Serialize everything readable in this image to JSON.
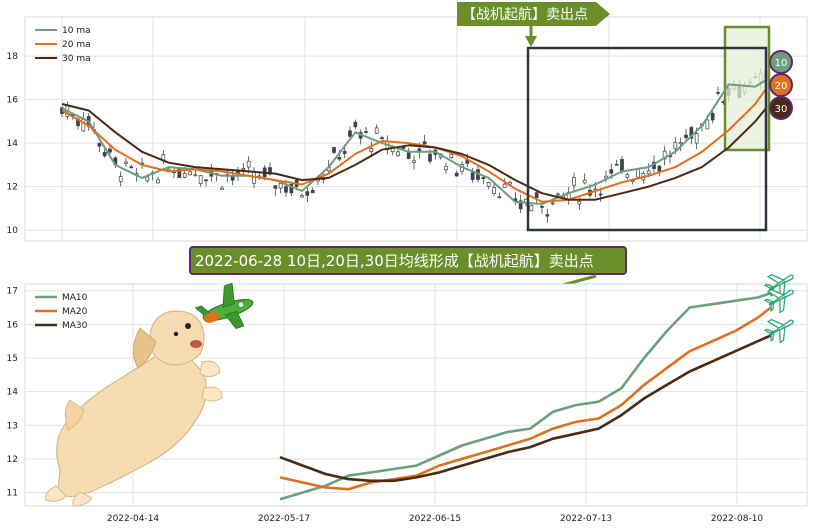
{
  "chart_data": [
    {
      "type": "line",
      "subtype": "candlestick-with-moving-averages",
      "x_tick_labels": [],
      "y_ticks": [
        10,
        12,
        14,
        16,
        18
      ],
      "ylim": [
        9.5,
        19.8
      ],
      "grid": true,
      "legend_position": "top-left",
      "series": [
        {
          "name": "10 ma",
          "color": "#6d9f7d",
          "x": [
            0,
            5,
            10,
            15,
            20,
            25,
            30,
            35,
            40,
            45,
            50,
            55,
            60,
            65,
            70,
            75,
            80,
            85,
            90,
            95,
            100,
            105,
            110,
            115,
            120,
            125,
            130,
            132
          ],
          "values": [
            15.6,
            15.0,
            13.0,
            12.4,
            12.9,
            12.8,
            12.5,
            12.5,
            12.3,
            11.8,
            12.9,
            14.5,
            14.0,
            13.6,
            13.6,
            12.9,
            12.4,
            11.3,
            11.2,
            11.7,
            12.1,
            12.7,
            12.9,
            13.6,
            14.8,
            16.7,
            16.6,
            16.9
          ]
        },
        {
          "name": "20 ma",
          "color": "#e07020",
          "x": [
            0,
            5,
            10,
            15,
            20,
            25,
            30,
            35,
            40,
            45,
            50,
            55,
            60,
            65,
            70,
            75,
            80,
            85,
            90,
            95,
            100,
            105,
            110,
            115,
            120,
            125,
            130,
            132
          ],
          "values": [
            15.5,
            14.8,
            13.7,
            13.0,
            12.7,
            12.8,
            12.7,
            12.5,
            12.3,
            12.1,
            12.6,
            13.5,
            14.1,
            14.0,
            13.8,
            13.4,
            12.7,
            11.9,
            11.3,
            11.4,
            11.8,
            12.2,
            12.5,
            12.9,
            13.6,
            14.6,
            15.8,
            16.5
          ]
        },
        {
          "name": "30 ma",
          "color": "#4a2a14",
          "x": [
            0,
            5,
            10,
            15,
            20,
            25,
            30,
            35,
            40,
            45,
            50,
            55,
            60,
            65,
            70,
            75,
            80,
            85,
            90,
            95,
            100,
            105,
            110,
            115,
            120,
            125,
            130,
            132
          ],
          "values": [
            15.8,
            15.5,
            14.5,
            13.6,
            13.1,
            12.9,
            12.8,
            12.7,
            12.6,
            12.3,
            12.4,
            13.0,
            13.7,
            13.9,
            13.8,
            13.5,
            13.0,
            12.3,
            11.7,
            11.4,
            11.4,
            11.7,
            12.0,
            12.4,
            12.9,
            13.8,
            15.0,
            15.6
          ]
        }
      ],
      "end_badges": [
        "10",
        "20",
        "30"
      ]
    },
    {
      "type": "line",
      "x_tick_labels": [
        "2022-04-14",
        "2022-05-17",
        "2022-06-15",
        "2022-07-13",
        "2022-08-10"
      ],
      "y_ticks": [
        11,
        12,
        13,
        14,
        15,
        16,
        17
      ],
      "ylim": [
        10.6,
        17.2
      ],
      "grid": true,
      "legend_position": "top-left",
      "series": [
        {
          "name": "MA10",
          "color": "#6d9f7d",
          "x": [
            0,
            3,
            6,
            9,
            12,
            15,
            18,
            21,
            24,
            27,
            30,
            33,
            36,
            39,
            42,
            45,
            48,
            51,
            54,
            57,
            60,
            63,
            65
          ],
          "values": [
            10.8,
            11.0,
            11.2,
            11.5,
            11.6,
            11.7,
            11.8,
            12.1,
            12.4,
            12.6,
            12.8,
            12.9,
            13.4,
            13.6,
            13.7,
            14.1,
            15.0,
            15.8,
            16.5,
            16.6,
            16.7,
            16.8,
            16.95
          ]
        },
        {
          "name": "MA20",
          "color": "#e07020",
          "x": [
            0,
            3,
            6,
            9,
            12,
            15,
            18,
            21,
            24,
            27,
            30,
            33,
            36,
            39,
            42,
            45,
            48,
            51,
            54,
            57,
            60,
            63,
            65
          ],
          "values": [
            11.45,
            11.3,
            11.15,
            11.1,
            11.3,
            11.4,
            11.5,
            11.8,
            12.0,
            12.2,
            12.4,
            12.6,
            12.9,
            13.1,
            13.2,
            13.6,
            14.2,
            14.7,
            15.2,
            15.5,
            15.8,
            16.2,
            16.55
          ]
        },
        {
          "name": "MA30",
          "color": "#4a2a14",
          "x": [
            0,
            3,
            6,
            9,
            12,
            15,
            18,
            21,
            24,
            27,
            30,
            33,
            36,
            39,
            42,
            45,
            48,
            51,
            54,
            57,
            60,
            63,
            65
          ],
          "values": [
            12.05,
            11.8,
            11.55,
            11.4,
            11.35,
            11.35,
            11.45,
            11.6,
            11.8,
            12.0,
            12.2,
            12.35,
            12.6,
            12.75,
            12.9,
            13.3,
            13.8,
            14.2,
            14.6,
            14.9,
            15.2,
            15.5,
            15.7
          ]
        }
      ]
    }
  ],
  "annotations": {
    "top_callout": "【战机起航】卖出点",
    "middle_callout": "2022-06-28 10日,20日,30日均线形成【战机起航】卖出点"
  },
  "colors": {
    "callout_fill": "#6a8f2a",
    "middle_callout_border": "#5b2a6e",
    "frame": "#2e3440",
    "highlight_fill": "#e6efd8",
    "highlight_border": "#6a8f2a"
  },
  "icons": [
    "puppy-illustration",
    "toy-airplane-icon",
    "airplane-icon"
  ]
}
